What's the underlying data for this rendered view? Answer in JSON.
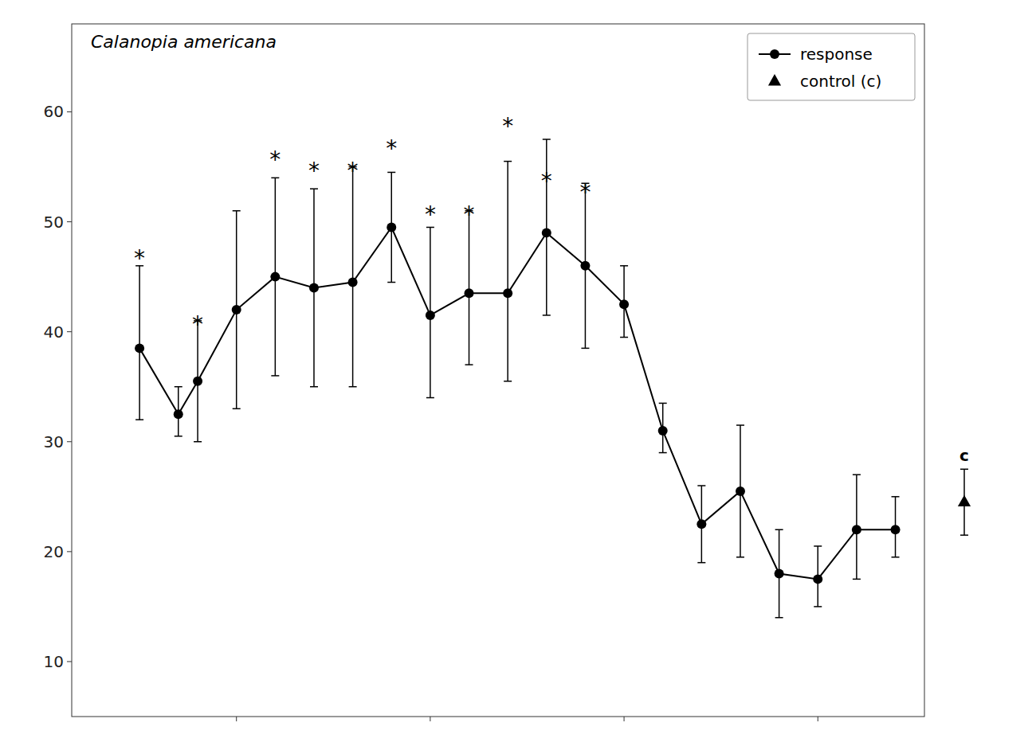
{
  "chart_data": {
    "type": "line",
    "title": "Calanopia americana",
    "x": [
      350,
      370,
      380,
      400,
      420,
      440,
      460,
      480,
      500,
      520,
      540,
      560,
      580,
      600,
      620,
      640,
      660,
      680,
      700,
      720,
      740
    ],
    "series": [
      {
        "name": "response",
        "color": "#000000",
        "marker": "circle",
        "values": [
          38.5,
          32.5,
          35.5,
          42.0,
          45.0,
          44.0,
          44.5,
          49.5,
          41.5,
          43.5,
          43.5,
          49.0,
          46.0,
          42.5,
          31.0,
          22.5,
          25.5,
          18.0,
          17.5,
          22.0,
          22.0
        ],
        "err_upper": [
          7.5,
          2.5,
          5.5,
          9.0,
          9.0,
          9.0,
          10.5,
          5.0,
          8.0,
          7.5,
          12.0,
          8.5,
          7.5,
          3.5,
          2.5,
          3.5,
          6.0,
          4.0,
          3.0,
          5.0,
          3.0
        ],
        "err_lower": [
          6.5,
          2.0,
          5.5,
          9.0,
          9.0,
          9.0,
          9.5,
          5.0,
          7.5,
          6.5,
          8.0,
          7.5,
          7.5,
          3.0,
          2.0,
          3.5,
          6.0,
          4.0,
          2.5,
          4.5,
          2.5
        ]
      }
    ],
    "control": {
      "name": "control (c)",
      "label": "c",
      "color": "#000000",
      "marker": "triangle",
      "value": 24.5,
      "err_upper": 3.0,
      "err_lower": 3.0
    },
    "annotations": [
      {
        "text": "*",
        "x": 350,
        "y": 47
      },
      {
        "text": "*",
        "x": 380,
        "y": 41
      },
      {
        "text": "*",
        "x": 420,
        "y": 56
      },
      {
        "text": "*",
        "x": 440,
        "y": 55
      },
      {
        "text": "*",
        "x": 460,
        "y": 55
      },
      {
        "text": "*",
        "x": 480,
        "y": 57
      },
      {
        "text": "*",
        "x": 500,
        "y": 51
      },
      {
        "text": "*",
        "x": 520,
        "y": 51
      },
      {
        "text": "*",
        "x": 540,
        "y": 59
      },
      {
        "text": "*",
        "x": 560,
        "y": 54
      },
      {
        "text": "*",
        "x": 580,
        "y": 53
      }
    ],
    "xlim": [
      315,
      755
    ],
    "ylim": [
      5,
      68
    ],
    "xticks": [
      400,
      500,
      600,
      700
    ],
    "yticks": [
      10,
      20,
      30,
      40,
      50,
      60
    ],
    "tick_labels": "y",
    "legend": "upper right",
    "grid": false
  }
}
